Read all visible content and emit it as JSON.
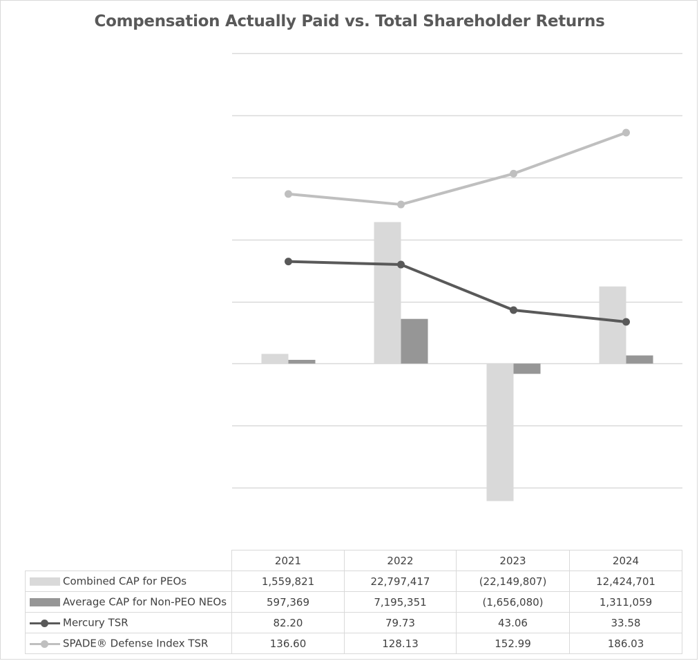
{
  "chart_data": {
    "type": "bar",
    "title": "Compensation Actually Paid vs. Total Shareholder Returns",
    "categories": [
      "2021",
      "2022",
      "2023",
      "2024"
    ],
    "series": [
      {
        "name": "Combined CAP for PEOs",
        "kind": "bar",
        "axis": "left",
        "color": "#d9d9d9",
        "values": [
          1559821,
          22797417,
          -22149807,
          12424701
        ],
        "labels": [
          "1,559,821",
          "22,797,417",
          "(22,149,807)",
          "12,424,701"
        ]
      },
      {
        "name": "Average CAP for Non-PEO NEOs",
        "kind": "bar",
        "axis": "left",
        "color": "#969696",
        "values": [
          597369,
          7195351,
          -1656080,
          1311059
        ],
        "labels": [
          "597,369",
          "7,195,351",
          "(1,656,080)",
          "1,311,059"
        ]
      },
      {
        "name": "Mercury TSR",
        "kind": "line",
        "axis": "right",
        "color": "#595959",
        "values": [
          82.2,
          79.73,
          43.06,
          33.58
        ],
        "labels": [
          "82.20",
          "79.73",
          "43.06",
          "33.58"
        ]
      },
      {
        "name": "SPADE® Defense Index TSR",
        "kind": "line",
        "axis": "right",
        "color": "#bfbfbf",
        "values": [
          136.6,
          128.13,
          152.99,
          186.03
        ],
        "labels": [
          "136.60",
          "128.13",
          "152.99",
          "186.03"
        ]
      }
    ],
    "left_axis_range": [
      -30000000,
      50000000
    ],
    "left_axis_step": 10000000,
    "right_axis_range": [
      -150,
      250
    ],
    "gridlines": true,
    "legend": "data table below chart"
  }
}
